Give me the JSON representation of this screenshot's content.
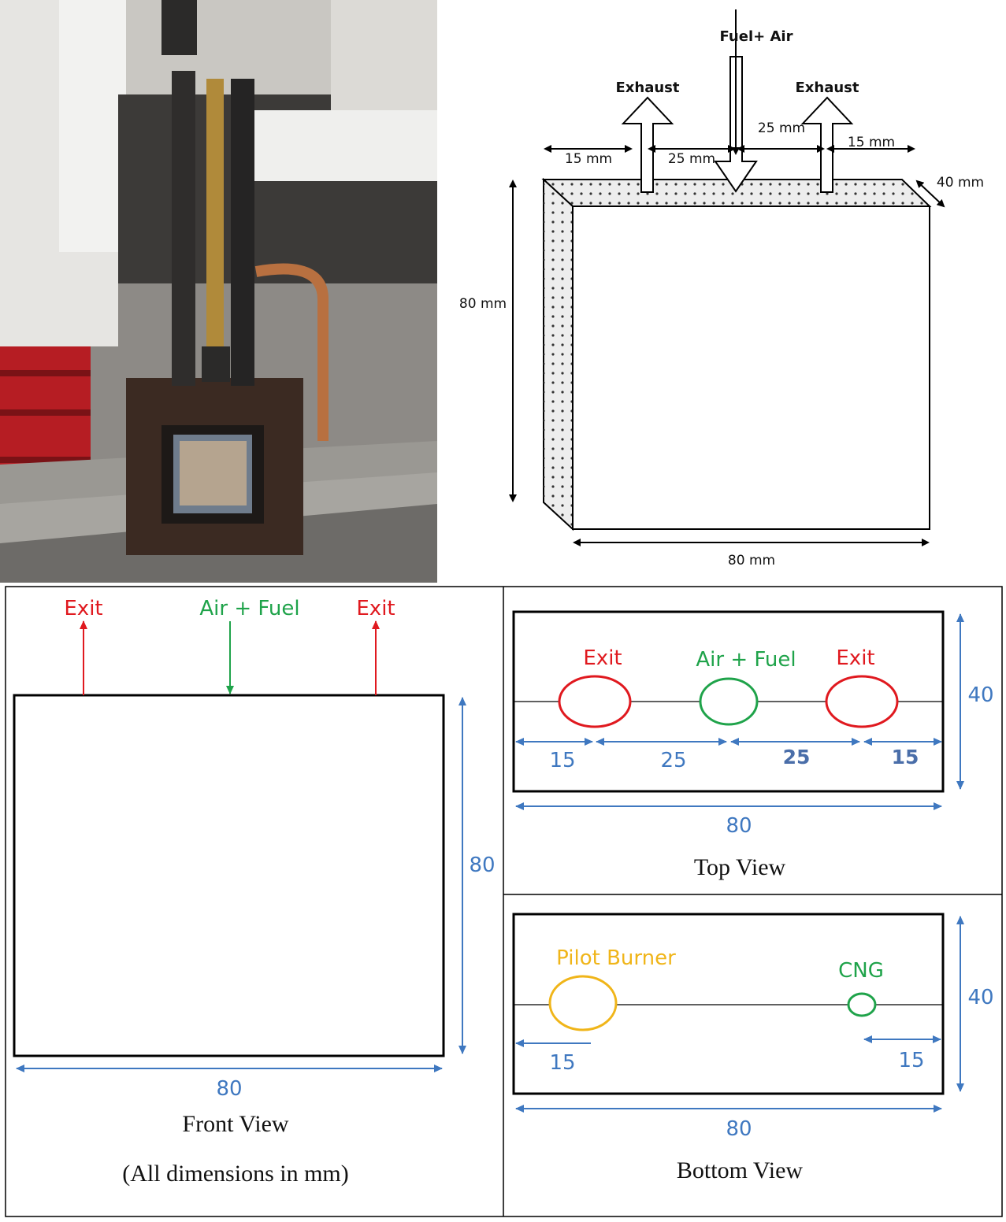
{
  "photo": {
    "icon": "combustor-photo"
  },
  "iso": {
    "fuel_air": "Fuel+ Air",
    "exhaust_left": "Exhaust",
    "exhaust_right": "Exhaust",
    "d1": "15 mm",
    "d2": "25 mm",
    "d3": "25 mm",
    "d4": "15 mm",
    "depth": "40 mm",
    "height": "80 mm",
    "width": "80 mm"
  },
  "front": {
    "exit_left": "Exit",
    "inlet": "Air + Fuel",
    "exit_right": "Exit",
    "height": "80",
    "width": "80",
    "caption": "Front View",
    "note": "(All dimensions in mm)"
  },
  "top": {
    "exit_left": "Exit",
    "inlet": "Air + Fuel",
    "exit_right": "Exit",
    "d1": "15",
    "d2": "25",
    "d3": "25",
    "d4": "15",
    "depth": "40",
    "width": "80",
    "caption": "Top View"
  },
  "bottom": {
    "pilot": "Pilot Burner",
    "cng": "CNG",
    "d_left": "15",
    "d_right": "15",
    "depth": "40",
    "width": "80",
    "caption": "Bottom View"
  },
  "colors": {
    "red": "#e0191f",
    "green": "#1fa34a",
    "blue": "#3f78c0",
    "gold": "#f0b519"
  }
}
